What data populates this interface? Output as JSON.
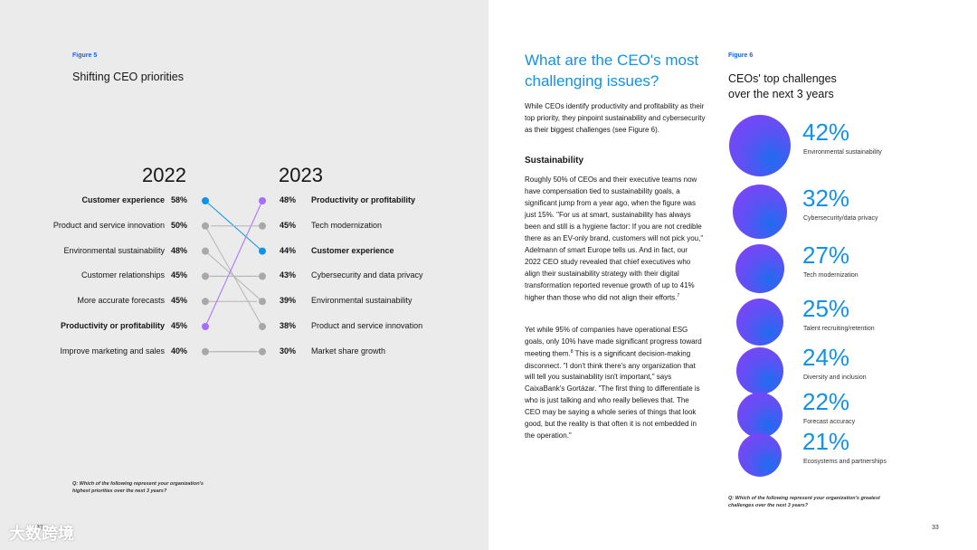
{
  "left_page": {
    "figure_label": "Figure 5",
    "figure_title": "Shifting CEO priorities",
    "year_left": "2022",
    "year_right": "2023",
    "rows_2022": [
      {
        "label": "Customer experience",
        "pct": "58%"
      },
      {
        "label": "Product and service innovation",
        "pct": "50%"
      },
      {
        "label": "Environmental sustainability",
        "pct": "48%"
      },
      {
        "label": "Customer relationships",
        "pct": "45%"
      },
      {
        "label": "More accurate forecasts",
        "pct": "45%"
      },
      {
        "label": "Productivity or profitability",
        "pct": "45%"
      },
      {
        "label": "Improve marketing and sales",
        "pct": "40%"
      }
    ],
    "rows_2023": [
      {
        "label": "Productivity or profitability",
        "pct": "48%"
      },
      {
        "label": "Tech modernization",
        "pct": "45%"
      },
      {
        "label": "Customer experience",
        "pct": "44%"
      },
      {
        "label": "Cybersecurity and data privacy",
        "pct": "43%"
      },
      {
        "label": "Environmental sustainability",
        "pct": "39%"
      },
      {
        "label": "Product and service innovation",
        "pct": "38%"
      },
      {
        "label": "Market share growth",
        "pct": "30%"
      }
    ],
    "footnote_line1": "Q: Which of the following represent your organization's",
    "footnote_line2": "highest priorities over the next 3 years?",
    "page_number": "32",
    "watermark": "大数跨境"
  },
  "chart_data": [
    {
      "type": "slope",
      "title": "Shifting CEO priorities",
      "series": [
        {
          "name": "2022",
          "categories": [
            "Customer experience",
            "Product and service innovation",
            "Environmental sustainability",
            "Customer relationships",
            "More accurate forecasts",
            "Productivity or profitability",
            "Improve marketing and sales"
          ],
          "values": [
            58,
            50,
            48,
            45,
            45,
            45,
            40
          ]
        },
        {
          "name": "2023",
          "categories": [
            "Productivity or profitability",
            "Tech modernization",
            "Customer experience",
            "Cybersecurity and data privacy",
            "Environmental sustainability",
            "Product and service innovation",
            "Market share growth"
          ],
          "values": [
            48,
            45,
            44,
            43,
            39,
            38,
            30
          ]
        }
      ],
      "highlighted": [
        "Customer experience",
        "Productivity or profitability"
      ]
    },
    {
      "type": "bubble",
      "title": "CEOs' top challenges over the next 3 years",
      "categories": [
        "Environmental sustainability",
        "Cybersecurity/data privacy",
        "Tech modernization",
        "Talent recruiting/retention",
        "Diversity and inclusion",
        "Forecast accuracy",
        "Ecosystems and partnerships"
      ],
      "values": [
        42,
        32,
        27,
        25,
        24,
        22,
        21
      ],
      "unit": "%"
    }
  ],
  "right_page": {
    "heading": "What are the CEO's most challenging issues?",
    "intro": "While CEOs identify productivity and profitability as their top priority, they pinpoint sustainability and cybersecurity as their biggest challenges (see Figure 6).",
    "subhead": "Sustainability",
    "para1": "Roughly 50% of CEOs and their executive teams now have compensation tied to sustainability goals, a significant jump from a year ago, when the figure was just 15%. \"For us at smart, sustainability has always been and still is a hygiene factor: If you are not credible there as an EV-only brand, customers will not pick you,\" Adelmann of smart Europe tells us. And in fact, our 2022 CEO study revealed that chief executives who align their sustainability strategy with their digital transformation reported revenue growth of up to 41% higher than those who did not align their efforts.",
    "para1_sup": "7",
    "para2_a": "Yet while 95% of companies have operational ESG goals, only 10% have made significant progress toward meeting them.",
    "para2_sup": "8",
    "para2_b": " This is a significant decision-making disconnect. \"I don't think there's any organization that will tell you sustainability isn't important,\" says CaixaBank's Gortázar. \"The first thing to differentiate is who is just talking and who really believes that. The CEO may be saying a whole series of things that look good, but the reality is that often it is not embedded in the operation.\"",
    "figure_label": "Figure 6",
    "figure_title_line1": "CEOs' top challenges",
    "figure_title_line2": "over the next 3 years",
    "challenges": [
      {
        "pct": "42%",
        "label": "Environmental sustainability"
      },
      {
        "pct": "32%",
        "label": "Cybersecurity/data privacy"
      },
      {
        "pct": "27%",
        "label": "Tech modernization"
      },
      {
        "pct": "25%",
        "label": "Talent recruiting/retention"
      },
      {
        "pct": "24%",
        "label": "Diversity and inclusion"
      },
      {
        "pct": "22%",
        "label": "Forecast accuracy"
      },
      {
        "pct": "21%",
        "label": "Ecosystems and partnerships"
      }
    ],
    "footnote_line1": "Q: Which of the following represent your organization's greatest",
    "footnote_line2": "challenges over the next 3 years?",
    "page_number": "33"
  },
  "colors": {
    "accent_blue": "#1192e8",
    "accent_purple": "#a56eff",
    "grey_dot": "#a8a8a8",
    "left_bg": "#ebebeb"
  }
}
